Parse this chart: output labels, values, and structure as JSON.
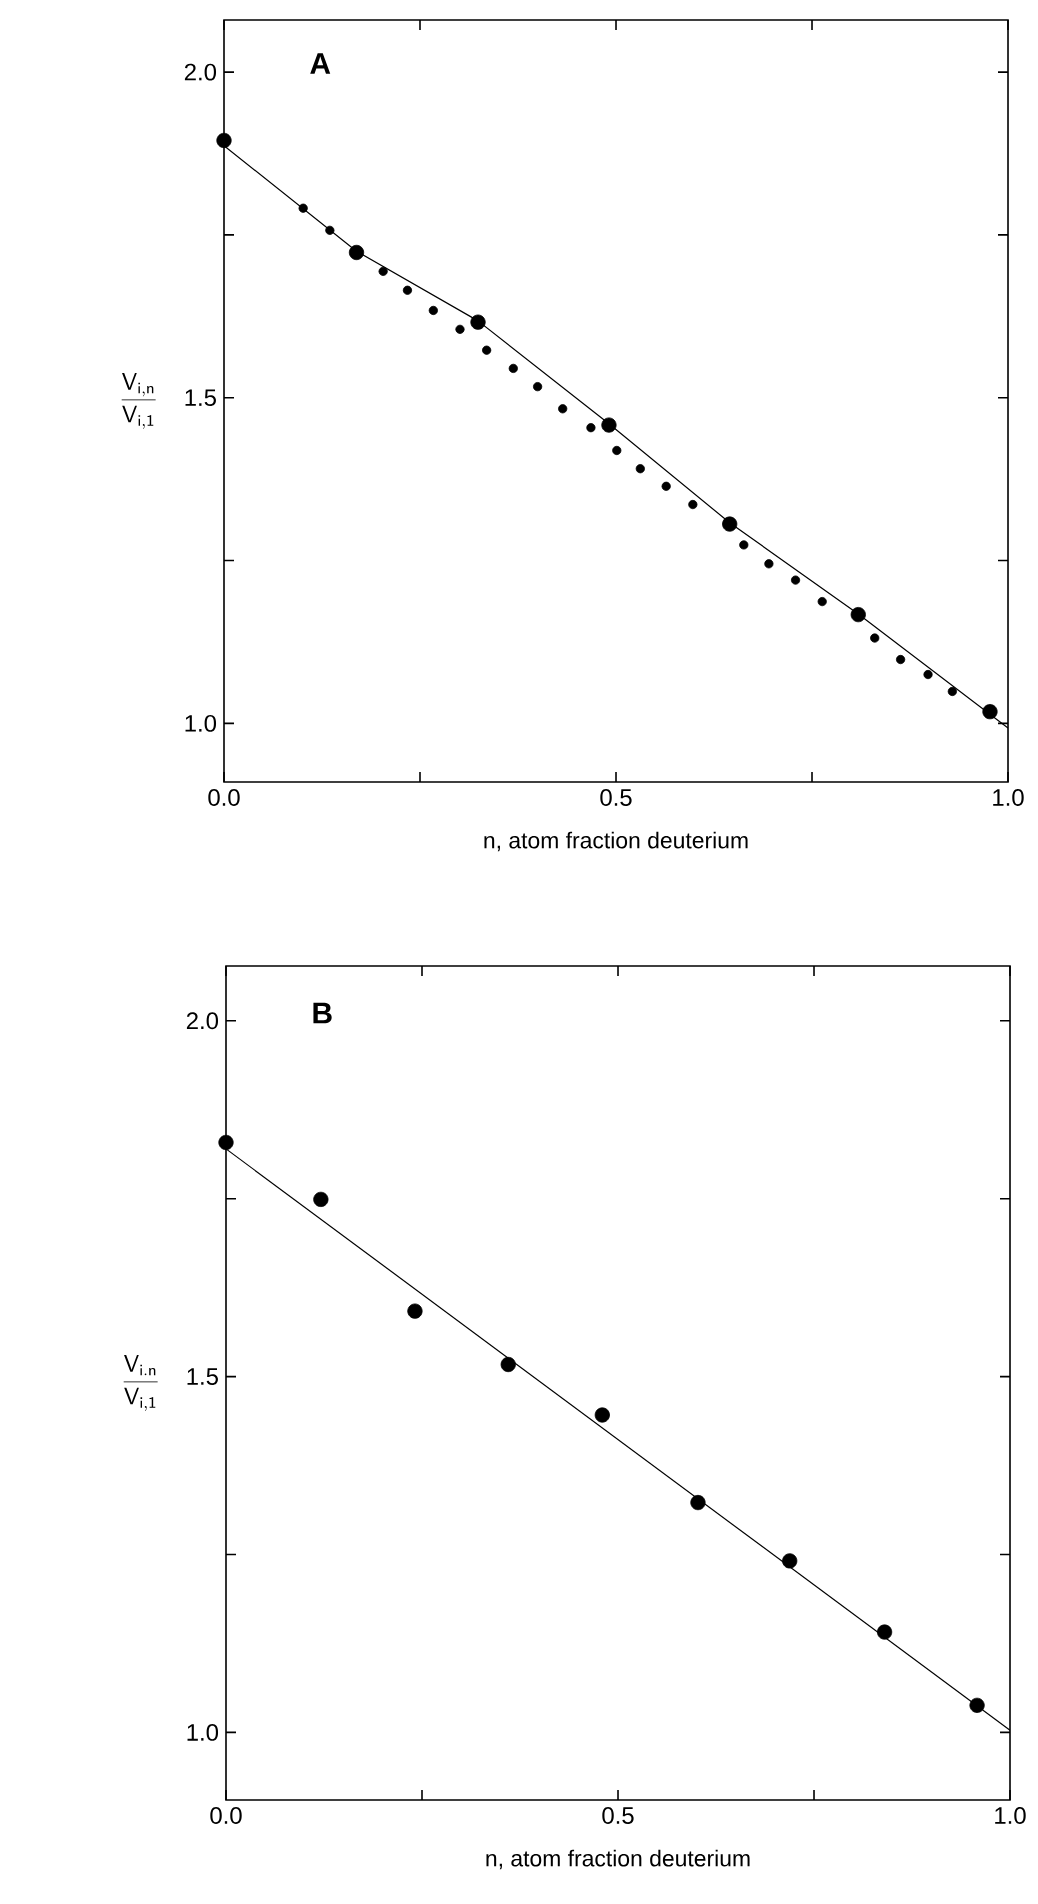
{
  "chart_data": [
    {
      "type": "scatter",
      "title": "A",
      "xlabel": "n, atom fraction deuterium",
      "ylabel": "\\frac{\\mathsf{V}_{\\mathsf{i,n}}}{\\mathsf{V}_{\\mathsf{i,1}}}",
      "xlim": [
        0,
        1
      ],
      "ylim": [
        0.91,
        2.08
      ],
      "xticks": [
        {
          "value": 0,
          "label": "0.0"
        },
        {
          "value": 0.25,
          "label": null
        },
        {
          "value": 0.5,
          "label": "0.5"
        },
        {
          "value": 0.75,
          "label": null
        },
        {
          "value": 1,
          "label": "1.0"
        }
      ],
      "yticks": [
        {
          "value": 1,
          "label": "1.0"
        },
        {
          "value": 1.25,
          "label": null
        },
        {
          "value": 1.5,
          "label": "1.5"
        },
        {
          "value": 1.75,
          "label": null
        },
        {
          "value": 2,
          "label": "2.0"
        }
      ],
      "series": [
        {
          "type": "line",
          "marker": "none",
          "color": "#000000",
          "x": [
            0,
            0.169,
            0.324,
            0.491,
            0.645,
            0.809,
            1.0
          ],
          "values": [
            1.887,
            1.725,
            1.618,
            1.46,
            1.308,
            1.168,
            0.993
          ]
        },
        {
          "marker": "circle",
          "color": "#000000",
          "x": [
            0,
            0.169,
            0.324,
            0.491,
            0.645,
            0.809,
            0.977
          ],
          "values": [
            1.895,
            1.723,
            1.616,
            1.458,
            1.306,
            1.167,
            1.018
          ]
        },
        {
          "marker": "circle",
          "color": "#000000",
          "x": [
            0.101,
            0.135,
            0.203,
            0.234,
            0.267,
            0.301,
            0.335,
            0.369,
            0.4,
            0.432,
            0.468,
            0.501,
            0.531,
            0.564,
            0.598,
            0.663,
            0.695,
            0.729,
            0.763,
            0.83,
            0.863,
            0.898,
            0.929
          ],
          "values": [
            1.791,
            1.757,
            1.694,
            1.665,
            1.634,
            1.605,
            1.573,
            1.545,
            1.517,
            1.483,
            1.454,
            1.419,
            1.391,
            1.364,
            1.336,
            1.274,
            1.245,
            1.22,
            1.187,
            1.131,
            1.098,
            1.075,
            1.049
          ]
        }
      ]
    },
    {
      "type": "scatter",
      "title": "B",
      "xlabel": "n, atom fraction deuterium",
      "ylabel": "\\frac{\\mathsf{V}_{\\mathsf{i.n}}}{\\mathsf{V}_{\\mathsf{i,1}}}",
      "xlim": [
        0,
        1
      ],
      "ylim": [
        0.905,
        2.077
      ],
      "xticks": [
        {
          "value": 0,
          "label": "0.0"
        },
        {
          "value": 0.25,
          "label": null
        },
        {
          "value": 0.5,
          "label": "0.5"
        },
        {
          "value": 0.75,
          "label": null
        },
        {
          "value": 1,
          "label": "1.0"
        }
      ],
      "yticks": [
        {
          "value": 1,
          "label": "1.0"
        },
        {
          "value": 1.25,
          "label": null
        },
        {
          "value": 1.5,
          "label": "1.5"
        },
        {
          "value": 1.75,
          "label": null
        },
        {
          "value": 2,
          "label": "2.0"
        }
      ],
      "series": [
        {
          "type": "line",
          "marker": "none",
          "color": "#000000",
          "x": [
            0,
            1
          ],
          "values": [
            1.82,
            1.003
          ]
        },
        {
          "marker": "circle",
          "color": "#000000",
          "x": [
            0,
            0.121,
            0.241,
            0.36,
            0.48,
            0.602,
            0.719,
            0.84,
            0.958
          ],
          "values": [
            1.829,
            1.749,
            1.592,
            1.517,
            1.446,
            1.323,
            1.241,
            1.141,
            1.038
          ]
        }
      ]
    }
  ]
}
